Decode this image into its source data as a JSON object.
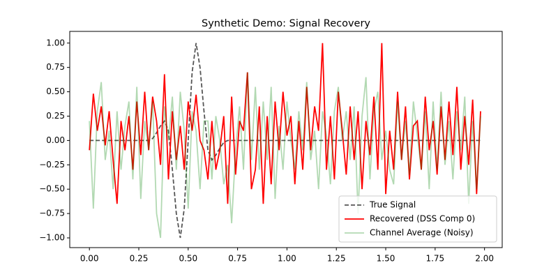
{
  "chart_data": {
    "type": "line",
    "title": "Synthetic Demo: Signal Recovery",
    "x": [
      0,
      0.02,
      0.04,
      0.06,
      0.08,
      0.1,
      0.12,
      0.14,
      0.16,
      0.18,
      0.2,
      0.22,
      0.24,
      0.26,
      0.28,
      0.3,
      0.32,
      0.34,
      0.36,
      0.38,
      0.4,
      0.42,
      0.44,
      0.46,
      0.48,
      0.5,
      0.52,
      0.54,
      0.56,
      0.58,
      0.6,
      0.62,
      0.64,
      0.66,
      0.68,
      0.7,
      0.72,
      0.74,
      0.76,
      0.78,
      0.8,
      0.82,
      0.84,
      0.86,
      0.88,
      0.9,
      0.92,
      0.94,
      0.96,
      0.98,
      1.0,
      1.02,
      1.04,
      1.06,
      1.08,
      1.1,
      1.12,
      1.14,
      1.16,
      1.18,
      1.2,
      1.22,
      1.24,
      1.26,
      1.28,
      1.3,
      1.32,
      1.34,
      1.36,
      1.38,
      1.4,
      1.42,
      1.44,
      1.46,
      1.48,
      1.5,
      1.52,
      1.54,
      1.56,
      1.58,
      1.6,
      1.62,
      1.64,
      1.66,
      1.68,
      1.7,
      1.72,
      1.74,
      1.76,
      1.78,
      1.8,
      1.82,
      1.84,
      1.86,
      1.88,
      1.9,
      1.92,
      1.94,
      1.96,
      1.98
    ],
    "series": [
      {
        "name": "True Signal",
        "color": "#555555",
        "dash": true,
        "alpha": 1,
        "values": [
          0,
          0,
          0,
          0,
          0,
          0,
          0,
          0,
          0,
          0,
          0,
          0,
          0,
          0,
          0,
          0,
          0.02,
          0.08,
          0.15,
          0.2,
          0.1,
          -0.3,
          -0.75,
          -1.0,
          -0.7,
          0,
          0.7,
          1.0,
          0.75,
          0.3,
          -0.1,
          -0.2,
          -0.15,
          -0.08,
          -0.02,
          0,
          0,
          0,
          0,
          0,
          0,
          0,
          0,
          0,
          0,
          0,
          0,
          0,
          0,
          0,
          0,
          0,
          0,
          0,
          0,
          0,
          0,
          0,
          0,
          0,
          0,
          0,
          0,
          0,
          0,
          0,
          0,
          0,
          0,
          0,
          0,
          0,
          0,
          0,
          0,
          0,
          0,
          0,
          0,
          0,
          0,
          0,
          0,
          0,
          0,
          0,
          0,
          0,
          0,
          0,
          0,
          0,
          0,
          0,
          0,
          0,
          0,
          0,
          0,
          0
        ]
      },
      {
        "name": "Recovered (DSS Comp 0)",
        "color": "#ff0000",
        "dash": false,
        "alpha": 1,
        "values": [
          -0.1,
          0.48,
          0.1,
          0.35,
          -0.05,
          0.3,
          -0.2,
          -0.65,
          0.2,
          -0.1,
          0.25,
          -0.3,
          0.4,
          -0.15,
          0.5,
          -0.1,
          0.45,
          0.2,
          -0.25,
          0.68,
          -0.4,
          0.3,
          -0.2,
          0.15,
          -0.3,
          0.4,
          0.1,
          0.47,
          0.0,
          -0.1,
          -0.4,
          0.2,
          -0.3,
          -0.1,
          0.25,
          -0.65,
          0.45,
          -0.35,
          0.2,
          0.1,
          0.7,
          -0.5,
          -0.3,
          0.35,
          -0.65,
          0.25,
          -0.45,
          0.4,
          -0.1,
          0.5,
          0.05,
          0.25,
          -0.45,
          0.2,
          -0.3,
          0.55,
          -0.1,
          0.35,
          0.1,
          1.0,
          -0.3,
          0.25,
          -0.4,
          0.5,
          0.1,
          -0.35,
          0.35,
          -0.2,
          0.3,
          -0.5,
          0.2,
          -0.15,
          0.45,
          -0.3,
          1.0,
          -0.55,
          0.1,
          -0.3,
          0.5,
          -0.2,
          0.35,
          -0.4,
          0.15,
          0.2,
          -0.3,
          0.45,
          -0.1,
          0.2,
          -0.35,
          0.35,
          -0.2,
          0.4,
          -0.15,
          0.55,
          -0.3,
          0.25,
          -0.25,
          0.42,
          -0.55,
          0.3
        ]
      },
      {
        "name": "Channel Average (Noisy)",
        "color": "#008000",
        "dash": false,
        "alpha": 0.3,
        "values": [
          0.2,
          -0.7,
          0.3,
          0.6,
          -0.2,
          0.1,
          -0.5,
          0.3,
          -0.3,
          0.15,
          0.4,
          -0.4,
          0.55,
          -0.6,
          0.2,
          -0.1,
          0.4,
          -0.75,
          -1.0,
          0.35,
          0.0,
          0.45,
          -0.3,
          0.5,
          0.1,
          -0.7,
          0.3,
          0.1,
          -0.5,
          0.2,
          0.2,
          -0.4,
          0.25,
          0.0,
          -0.45,
          -0.25,
          -0.85,
          -0.1,
          0.35,
          -0.3,
          0.7,
          -0.2,
          0.55,
          -0.3,
          0.4,
          -0.2,
          0.55,
          -0.6,
          0.15,
          -0.3,
          0.4,
          0.0,
          -0.3,
          0.3,
          -0.1,
          0.6,
          -0.2,
          0.1,
          -0.5,
          0.3,
          0.05,
          -0.45,
          0.3,
          0.55,
          0.0,
          0.3,
          -0.2,
          0.35,
          -0.75,
          0.25,
          0.65,
          -0.4,
          0.3,
          0.5,
          -0.2,
          0.1,
          -0.3,
          -0.45,
          0.4,
          -0.2,
          0.2,
          -0.35,
          0.4,
          0.05,
          -0.3,
          0.3,
          -0.5,
          0.4,
          -0.3,
          0.5,
          -0.25,
          0.2,
          -0.4,
          0.3,
          -0.1,
          0.45,
          -0.65,
          0.2,
          -0.5,
          0.25
        ]
      }
    ],
    "xlim": [
      -0.0995,
      2.0895
    ],
    "ylim": [
      -1.1,
      1.12
    ],
    "xticks": [
      {
        "value": 0,
        "label": "0.00"
      },
      {
        "value": 0.25,
        "label": "0.25"
      },
      {
        "value": 0.5,
        "label": "0.50"
      },
      {
        "value": 0.75,
        "label": "0.75"
      },
      {
        "value": 1,
        "label": "1.00"
      },
      {
        "value": 1.25,
        "label": "1.25"
      },
      {
        "value": 1.5,
        "label": "1.50"
      },
      {
        "value": 1.75,
        "label": "1.75"
      },
      {
        "value": 2,
        "label": "2.00"
      }
    ],
    "yticks": [
      {
        "value": -1,
        "label": "−1.00"
      },
      {
        "value": -0.75,
        "label": "−0.75"
      },
      {
        "value": -0.5,
        "label": "−0.50"
      },
      {
        "value": -0.25,
        "label": "−0.25"
      },
      {
        "value": 0,
        "label": "0.00"
      },
      {
        "value": 0.25,
        "label": "0.25"
      },
      {
        "value": 0.5,
        "label": "0.50"
      },
      {
        "value": 0.75,
        "label": "0.75"
      },
      {
        "value": 1,
        "label": "1.00"
      }
    ],
    "legend": "lower right"
  }
}
